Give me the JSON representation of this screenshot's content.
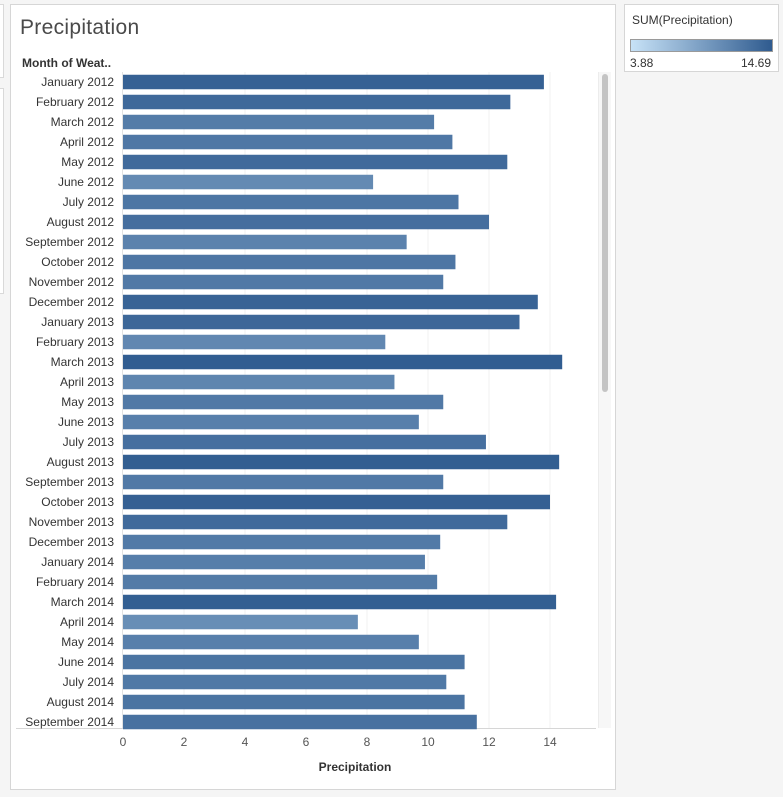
{
  "chart_data": {
    "type": "bar",
    "orientation": "horizontal",
    "title": "Precipitation",
    "row_header": "Month of Weat..",
    "xlabel": "Precipitation",
    "xlim": [
      0,
      15.9
    ],
    "xticks": [
      0,
      2,
      4,
      6,
      8,
      10,
      12,
      14
    ],
    "categories": [
      "January 2012",
      "February 2012",
      "March 2012",
      "April 2012",
      "May 2012",
      "June 2012",
      "July 2012",
      "August 2012",
      "September 2012",
      "October 2012",
      "November 2012",
      "December 2012",
      "January 2013",
      "February 2013",
      "March 2013",
      "April 2013",
      "May 2013",
      "June 2013",
      "July 2013",
      "August 2013",
      "September 2013",
      "October 2013",
      "November 2013",
      "December 2013",
      "January 2014",
      "February 2014",
      "March 2014",
      "April 2014",
      "May 2014",
      "June 2014",
      "July 2014",
      "August 2014",
      "September 2014"
    ],
    "values": [
      13.8,
      12.7,
      10.2,
      10.8,
      12.6,
      8.2,
      11.0,
      12.0,
      9.3,
      10.9,
      10.5,
      13.6,
      13.0,
      8.6,
      14.4,
      8.9,
      10.5,
      9.7,
      11.9,
      14.3,
      10.5,
      14.0,
      12.6,
      10.4,
      9.9,
      10.3,
      14.2,
      7.7,
      9.7,
      11.2,
      10.6,
      11.2,
      11.6
    ],
    "color_legend": {
      "title": "SUM(Precipitation)",
      "min_label": "3.88",
      "max_label": "14.69",
      "min": 3.88,
      "max": 14.69,
      "color_low": "#c7e2f7",
      "color_high": "#2f5b8f"
    },
    "grid": true
  }
}
